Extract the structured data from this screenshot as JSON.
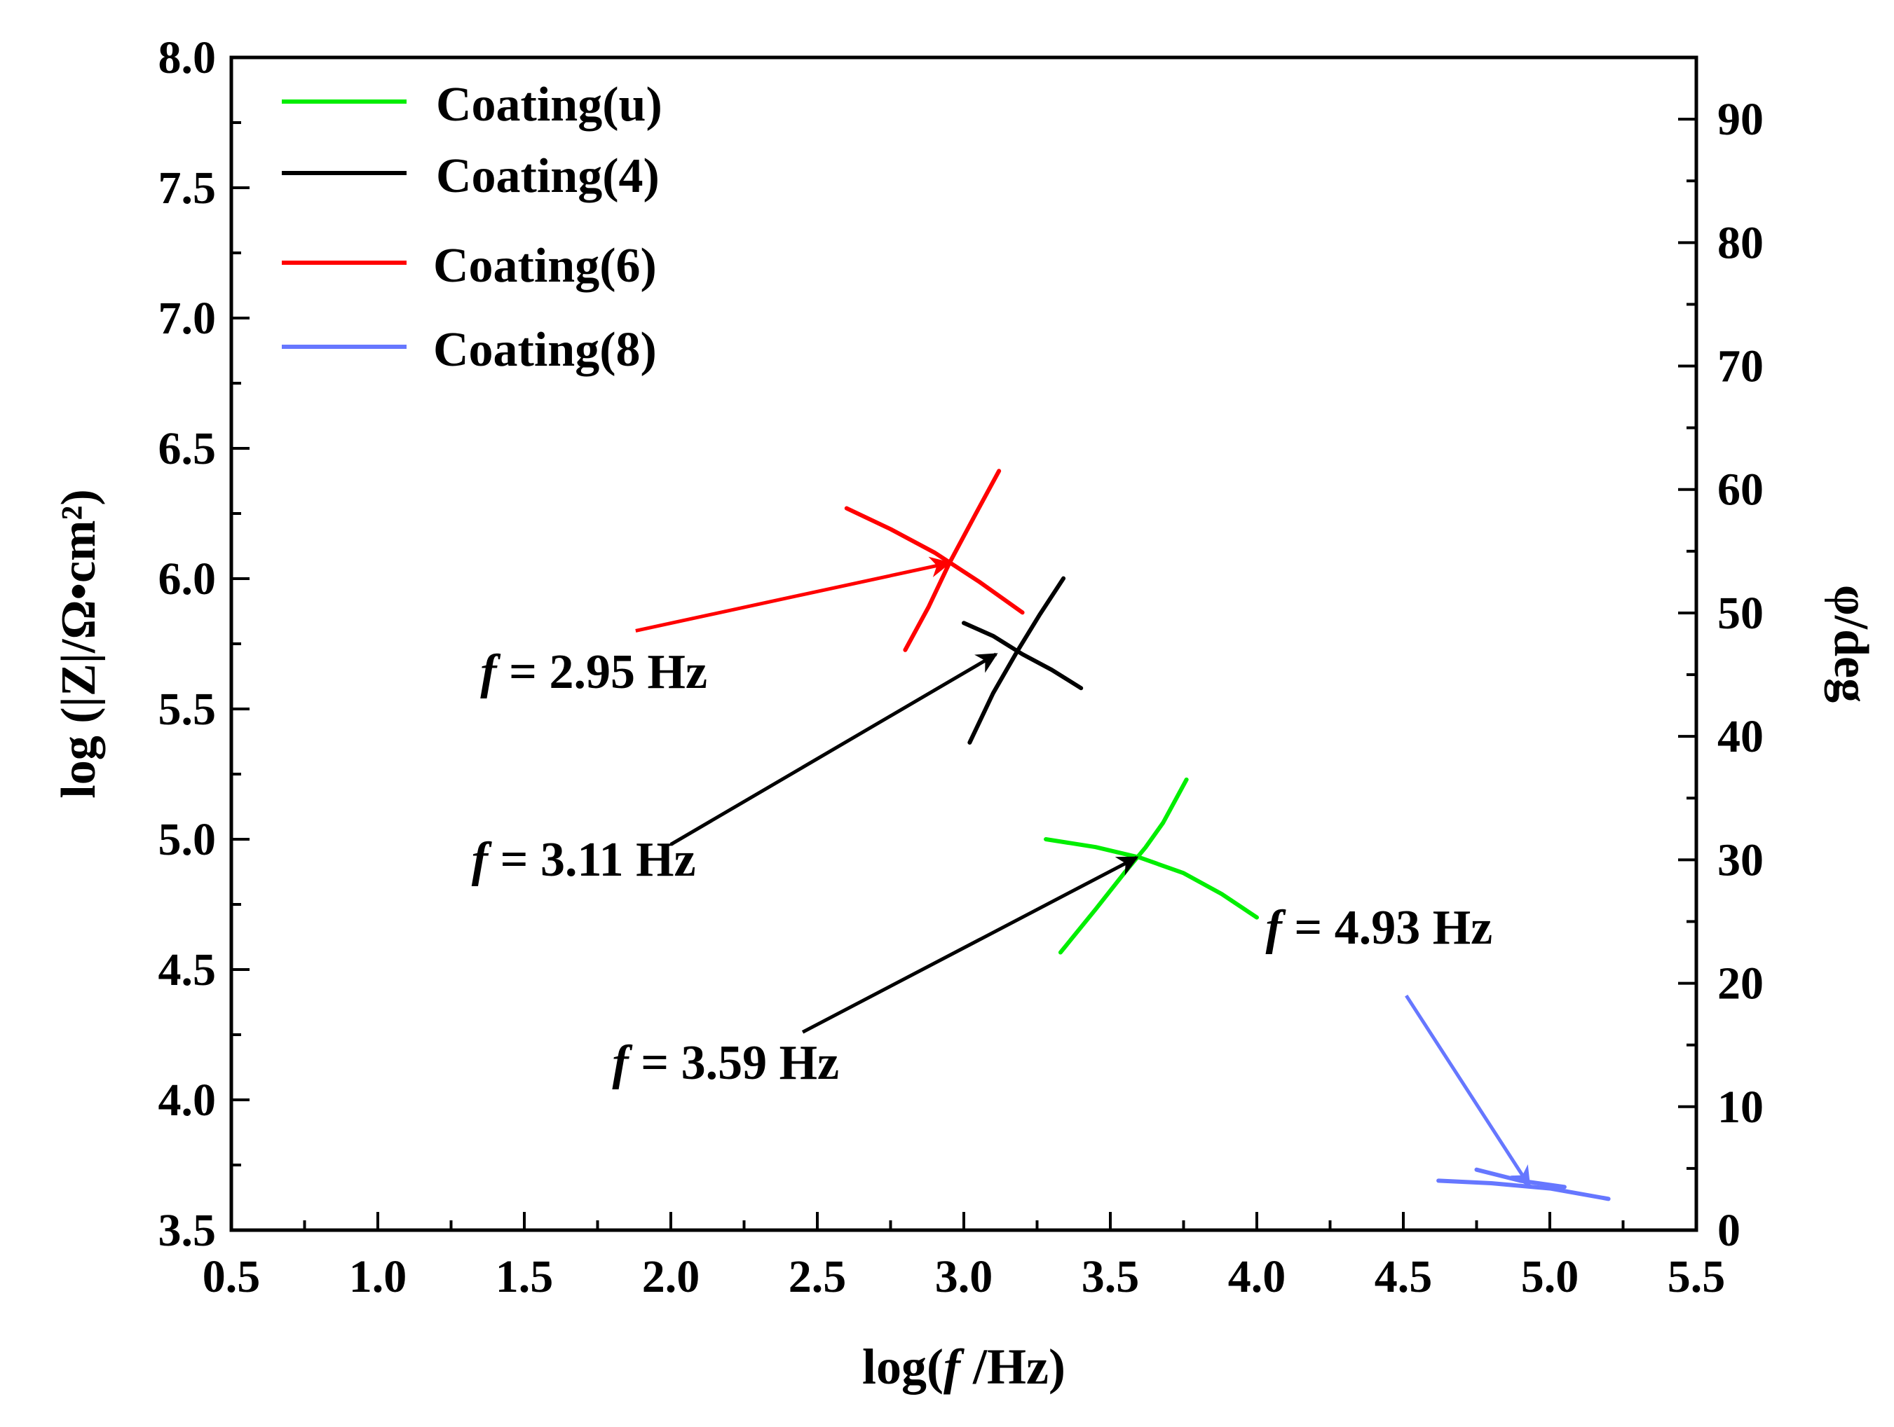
{
  "chart_data": {
    "type": "line",
    "xlabel_prefix": "log(",
    "xlabel_f": "f",
    "xlabel_suffix": " /Hz)",
    "ylabel_left": "log (|Z|/Ω•cm²)",
    "ylabel_right": "φ/deg",
    "xlim": [
      0.5,
      5.5
    ],
    "ylim_left": [
      3.5,
      8.0
    ],
    "ylim_right": [
      0,
      95
    ],
    "x_ticks": [
      "0.5",
      "1.0",
      "1.5",
      "2.0",
      "2.5",
      "3.0",
      "3.5",
      "4.0",
      "4.5",
      "5.0",
      "5.5"
    ],
    "y_left_ticks": [
      "3.5",
      "4.0",
      "4.5",
      "5.0",
      "5.5",
      "6.0",
      "6.5",
      "7.0",
      "7.5",
      "8.0"
    ],
    "y_right_ticks": [
      "0",
      "10",
      "20",
      "30",
      "40",
      "50",
      "60",
      "70",
      "80",
      "90"
    ],
    "legend": {
      "placement": "top-left",
      "entries": [
        {
          "name": "Coating(u)",
          "color": "#00ee00"
        },
        {
          "name": "Coating(4)",
          "color": "#000000"
        },
        {
          "name": "Coating(6)",
          "color": "#ff0000"
        },
        {
          "name": "Coating(8)",
          "color": "#6677ff"
        }
      ]
    },
    "series": [
      {
        "name": "Coating(u)",
        "color": "#00ee00",
        "impedance": {
          "x": [
            3.28,
            3.45,
            3.6,
            3.75,
            3.88,
            4.0
          ],
          "y": [
            5.0,
            4.97,
            4.93,
            4.87,
            4.79,
            4.7
          ]
        },
        "phase": {
          "x": [
            3.33,
            3.45,
            3.55,
            3.62,
            3.68,
            3.76
          ],
          "y": [
            22.5,
            26.0,
            29.0,
            31.0,
            33.0,
            36.5
          ]
        }
      },
      {
        "name": "Coating(4)",
        "color": "#000000",
        "impedance": {
          "x": [
            3.0,
            3.1,
            3.2,
            3.3,
            3.4
          ],
          "y": [
            5.83,
            5.78,
            5.71,
            5.65,
            5.58
          ]
        },
        "phase": {
          "x": [
            3.02,
            3.1,
            3.18,
            3.26,
            3.34
          ],
          "y": [
            39.5,
            43.5,
            46.8,
            49.9,
            52.8
          ]
        }
      },
      {
        "name": "Coating(6)",
        "color": "#ff0000",
        "impedance": {
          "x": [
            2.6,
            2.75,
            2.9,
            3.05,
            3.2
          ],
          "y": [
            6.27,
            6.19,
            6.1,
            5.99,
            5.87
          ]
        },
        "phase": {
          "x": [
            2.8,
            2.88,
            2.95,
            3.04,
            3.12
          ],
          "y": [
            47.0,
            50.5,
            54.0,
            58.0,
            61.5
          ]
        }
      },
      {
        "name": "Coating(8)",
        "color": "#6677ff",
        "impedance": {
          "x": [
            4.62,
            4.8,
            5.0,
            5.2
          ],
          "y": [
            3.69,
            3.68,
            3.66,
            3.62
          ]
        },
        "phase": {
          "x": [
            4.75,
            4.9,
            5.05
          ],
          "y": [
            4.9,
            4.0,
            3.5
          ]
        }
      }
    ],
    "annotations": [
      {
        "label_f": "f",
        "label_rest": " = 2.95 Hz",
        "text_at": [
          1.35,
          5.58
        ],
        "tail": [
          1.88,
          5.8
        ],
        "head": [
          2.95,
          6.06
        ],
        "color": "#ff0000"
      },
      {
        "label_f": "f",
        "label_rest": " = 3.11 Hz",
        "text_at": [
          1.32,
          4.86
        ],
        "tail": [
          2.0,
          4.98
        ],
        "head": [
          3.11,
          5.71
        ],
        "color": "#000000"
      },
      {
        "label_f": "f",
        "label_rest": " = 3.59 Hz",
        "text_at": [
          1.8,
          4.08
        ],
        "tail": [
          2.45,
          4.26
        ],
        "head": [
          3.59,
          4.93
        ],
        "color": "#000000"
      },
      {
        "label_f": "f",
        "label_rest": " = 4.93 Hz",
        "text_at": [
          4.03,
          4.6
        ],
        "tail": [
          4.51,
          4.4
        ],
        "head": [
          4.93,
          3.67
        ],
        "color": "#6677ff"
      }
    ]
  }
}
